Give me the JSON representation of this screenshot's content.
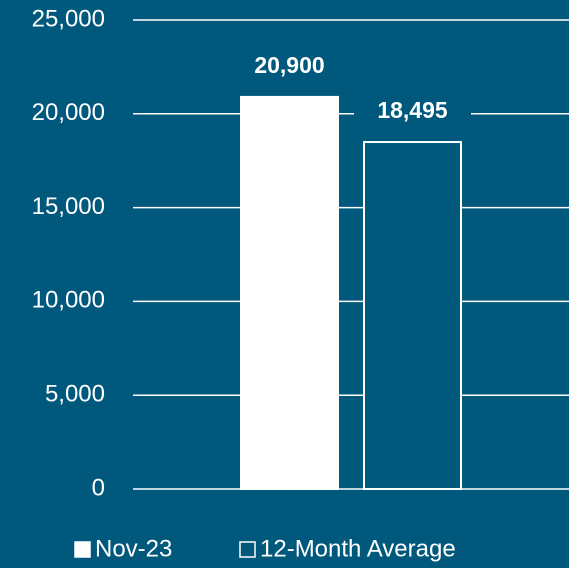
{
  "chart_data": {
    "type": "bar",
    "categories": [
      null
    ],
    "series": [
      {
        "name": "Nov-23",
        "color": "#ffffff",
        "edgecolor": "#ffffff",
        "values": [
          20900
        ],
        "value_labels": [
          "20,900"
        ]
      },
      {
        "name": "12-Month Average",
        "color": "#00587c",
        "edgecolor": "#ffffff",
        "values": [
          18495
        ],
        "value_labels": [
          "18,495"
        ]
      }
    ],
    "ylim": [
      0,
      25000
    ],
    "yticks": [
      0,
      {
        "value": 5000,
        "label": "5,000"
      },
      {
        "value": 10000,
        "label": "10,000"
      },
      {
        "value": 15000,
        "label": "15,000"
      },
      {
        "value": 20000,
        "label": "20,000"
      },
      {
        "value": 25000,
        "label": "25,000"
      }
    ],
    "grid": true,
    "legend": "bottom",
    "background": "#00587c"
  }
}
